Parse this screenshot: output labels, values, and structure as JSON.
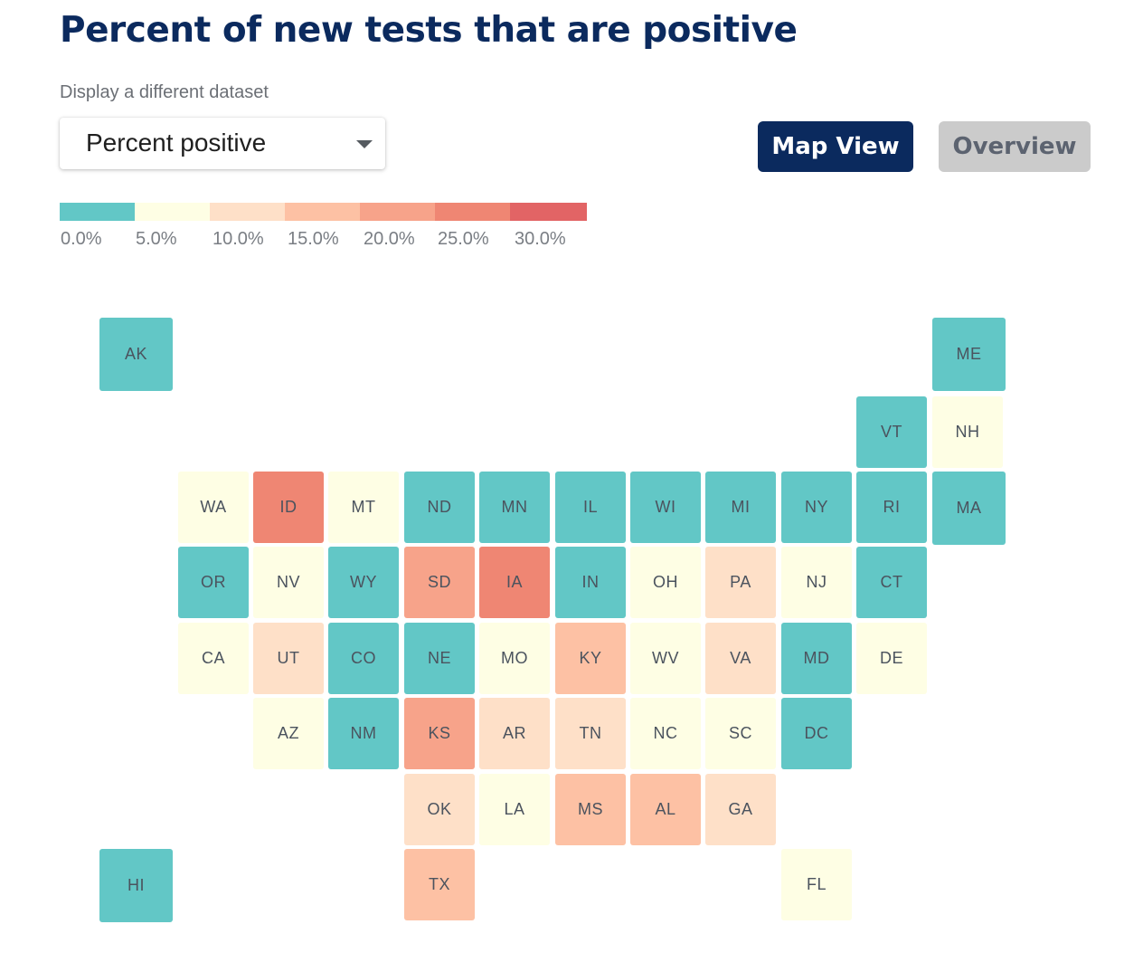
{
  "header": {
    "title": "Percent of new tests that are positive"
  },
  "dataset_picker": {
    "label": "Display a different dataset",
    "selected": "Percent positive"
  },
  "view_toggle": {
    "map_label": "Map View",
    "overview_label": "Overview",
    "active": "Map View"
  },
  "legend": {
    "bins": [
      {
        "label": "0.0%",
        "color": "#62c7c6"
      },
      {
        "label": "5.0%",
        "color": "#fefee4"
      },
      {
        "label": "10.0%",
        "color": "#fee0c8"
      },
      {
        "label": "15.0%",
        "color": "#fdc1a4"
      },
      {
        "label": "20.0%",
        "color": "#f7a38a"
      },
      {
        "label": "25.0%",
        "color": "#ef8673"
      },
      {
        "label": "30.0%",
        "color": "#e26465"
      }
    ]
  },
  "map": {
    "type": "tile-grid-map",
    "states": [
      {
        "abbr": "AK",
        "bin": 0
      },
      {
        "abbr": "ME",
        "bin": 0
      },
      {
        "abbr": "VT",
        "bin": 0
      },
      {
        "abbr": "NH",
        "bin": 1
      },
      {
        "abbr": "WA",
        "bin": 1
      },
      {
        "abbr": "ID",
        "bin": 5
      },
      {
        "abbr": "MT",
        "bin": 1
      },
      {
        "abbr": "ND",
        "bin": 0
      },
      {
        "abbr": "MN",
        "bin": 0
      },
      {
        "abbr": "IL",
        "bin": 0
      },
      {
        "abbr": "WI",
        "bin": 0
      },
      {
        "abbr": "MI",
        "bin": 0
      },
      {
        "abbr": "NY",
        "bin": 0
      },
      {
        "abbr": "RI",
        "bin": 0
      },
      {
        "abbr": "MA",
        "bin": 0
      },
      {
        "abbr": "OR",
        "bin": 0
      },
      {
        "abbr": "NV",
        "bin": 1
      },
      {
        "abbr": "WY",
        "bin": 0
      },
      {
        "abbr": "SD",
        "bin": 4
      },
      {
        "abbr": "IA",
        "bin": 5
      },
      {
        "abbr": "IN",
        "bin": 0
      },
      {
        "abbr": "OH",
        "bin": 1
      },
      {
        "abbr": "PA",
        "bin": 2
      },
      {
        "abbr": "NJ",
        "bin": 1
      },
      {
        "abbr": "CT",
        "bin": 0
      },
      {
        "abbr": "CA",
        "bin": 1
      },
      {
        "abbr": "UT",
        "bin": 2
      },
      {
        "abbr": "CO",
        "bin": 0
      },
      {
        "abbr": "NE",
        "bin": 0
      },
      {
        "abbr": "MO",
        "bin": 1
      },
      {
        "abbr": "KY",
        "bin": 3
      },
      {
        "abbr": "WV",
        "bin": 1
      },
      {
        "abbr": "VA",
        "bin": 2
      },
      {
        "abbr": "MD",
        "bin": 0
      },
      {
        "abbr": "DE",
        "bin": 1
      },
      {
        "abbr": "AZ",
        "bin": 1
      },
      {
        "abbr": "NM",
        "bin": 0
      },
      {
        "abbr": "KS",
        "bin": 4
      },
      {
        "abbr": "AR",
        "bin": 2
      },
      {
        "abbr": "TN",
        "bin": 2
      },
      {
        "abbr": "NC",
        "bin": 1
      },
      {
        "abbr": "SC",
        "bin": 1
      },
      {
        "abbr": "DC",
        "bin": 0
      },
      {
        "abbr": "OK",
        "bin": 2
      },
      {
        "abbr": "LA",
        "bin": 1
      },
      {
        "abbr": "MS",
        "bin": 3
      },
      {
        "abbr": "AL",
        "bin": 3
      },
      {
        "abbr": "GA",
        "bin": 2
      },
      {
        "abbr": "HI",
        "bin": 0
      },
      {
        "abbr": "TX",
        "bin": 3
      },
      {
        "abbr": "FL",
        "bin": 1
      }
    ]
  }
}
